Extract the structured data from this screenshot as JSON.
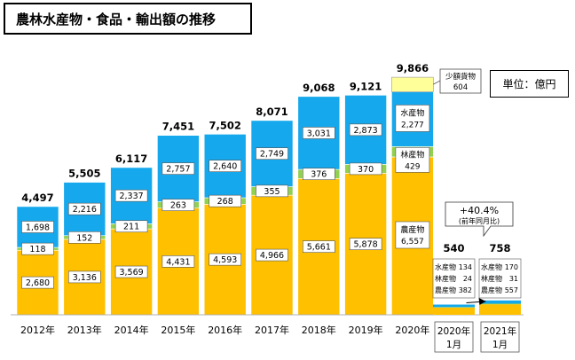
{
  "title": "農林水産物・食品・輸出額の推移",
  "unit": "単位：億円",
  "colors": {
    "agri": "#FFC000",
    "forest": "#92D050",
    "fish": "#16A8EC",
    "small": "#FFFF99",
    "border": "#ffffff"
  },
  "chart_data": {
    "type": "bar",
    "stacked": true,
    "categories": [
      "2012年",
      "2013年",
      "2014年",
      "2015年",
      "2016年",
      "2017年",
      "2018年",
      "2019年",
      "2020年"
    ],
    "series": [
      {
        "name": "農産物",
        "values": [
          2680,
          3136,
          3569,
          4431,
          4593,
          4966,
          5661,
          5878,
          6557
        ]
      },
      {
        "name": "林産物",
        "values": [
          118,
          152,
          211,
          263,
          268,
          355,
          376,
          370,
          429
        ]
      },
      {
        "name": "水産物",
        "values": [
          1698,
          2216,
          2337,
          2757,
          2640,
          2749,
          3031,
          2873,
          2277
        ]
      },
      {
        "name": "少額貨物",
        "values": [
          null,
          null,
          null,
          null,
          null,
          null,
          null,
          null,
          604
        ]
      }
    ],
    "totals": [
      "4,497",
      "5,505",
      "6,117",
      "7,451",
      "7,502",
      "8,071",
      "9,068",
      "9,121",
      "9,866"
    ],
    "segment_labels": {
      "agri": [
        "2,680",
        "3,136",
        "3,569",
        "4,431",
        "4,593",
        "4,966",
        "5,661",
        "5,878",
        "6,557"
      ],
      "forest": [
        "118",
        "152",
        "211",
        "263",
        "268",
        "355",
        "376",
        "370",
        "429"
      ],
      "fish": [
        "1,698",
        "2,216",
        "2,337",
        "2,757",
        "2,640",
        "2,749",
        "3,031",
        "2,873",
        "2,277"
      ]
    },
    "y_max": 10000,
    "labels_2020": {
      "small_line1": "少額貨物",
      "small_line2": "604",
      "fish_name": "水産物",
      "fish_value": "2,277",
      "forest_name": "林産物",
      "forest_value": "429",
      "agri_name": "農産物",
      "agri_value": "6,557"
    },
    "monthly": {
      "categories": [
        [
          "2020年",
          "1月"
        ],
        [
          "2021年",
          "1月"
        ]
      ],
      "totals": [
        "540",
        "758"
      ],
      "series": [
        {
          "name": "農産物",
          "values": [
            382,
            557
          ]
        },
        {
          "name": "林産物",
          "values": [
            24,
            31
          ]
        },
        {
          "name": "水産物",
          "values": [
            134,
            170
          ]
        }
      ],
      "legend_rows": [
        [
          [
            "水産物",
            "134"
          ],
          [
            "林産物",
            "24"
          ],
          [
            "農産物",
            "382"
          ]
        ],
        [
          [
            "水産物",
            "170"
          ],
          [
            "林産物",
            "31"
          ],
          [
            "農産物",
            "557"
          ]
        ]
      ],
      "growth_label": "+40.4%",
      "growth_sub": "(前年同月比)"
    }
  }
}
